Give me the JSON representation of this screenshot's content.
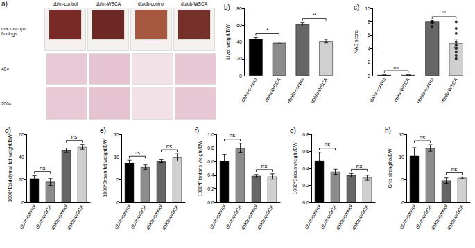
{
  "panel_a": {
    "label": "a)",
    "columns": [
      "db/m-control",
      "db/m-WSCA",
      "db/db-control",
      "db/db-WSCA"
    ],
    "rows": [
      "macroscopic findings",
      "40×",
      "200×"
    ]
  },
  "chart_data": [
    {
      "type": "bar",
      "panel": "b)",
      "y_label": "Liver weight/BW",
      "categories": [
        "db/m-control",
        "db/m-WSCA",
        "db/db-control",
        "db/db-WSCA"
      ],
      "values": [
        43,
        39,
        61,
        41
      ],
      "errors": [
        2,
        1,
        2,
        2
      ],
      "colors": [
        "#000000",
        "#8c8c8c",
        "#666666",
        "#d0d0d0"
      ],
      "ylim": [
        0,
        80
      ],
      "yticks": [
        0,
        20,
        40,
        60,
        80
      ],
      "grid": false,
      "annotations": [
        {
          "from": "db/m-control",
          "to": "db/m-WSCA",
          "text": "*"
        },
        {
          "from": "db/db-control",
          "to": "db/db-WSCA",
          "text": "**"
        }
      ]
    },
    {
      "type": "bar",
      "panel": "c)",
      "y_label": "NAS score",
      "categories": [
        "db/m-control",
        "db/m-WSCA",
        "db/db-control",
        "db/db-WSCA"
      ],
      "values": [
        0.1,
        0.1,
        8,
        4.8
      ],
      "errors": [
        0,
        0,
        0.15,
        0.6
      ],
      "points": [
        [],
        [],
        [
          8,
          8,
          8,
          8,
          7.3
        ],
        [
          8,
          7,
          6.3,
          5,
          4.5,
          4,
          3.5,
          3,
          2.5
        ]
      ],
      "colors": [
        "#000000",
        "#8c8c8c",
        "#666666",
        "#d0d0d0"
      ],
      "ylim": [
        0,
        10
      ],
      "yticks": [
        0,
        2,
        4,
        6,
        8,
        10
      ],
      "grid": false,
      "annotations": [
        {
          "from": "db/m-control",
          "to": "db/m-WSCA",
          "text": "ns"
        },
        {
          "from": "db/db-control",
          "to": "db/db-WSCA",
          "text": "**"
        }
      ]
    },
    {
      "type": "bar",
      "panel": "d)",
      "y_label": "1000*Epididymal fat weight/BW",
      "categories": [
        "db/m-control",
        "db/m-WSCA",
        "db/db-control",
        "db/db-WSCA"
      ],
      "values": [
        21,
        18,
        46,
        49
      ],
      "errors": [
        2.5,
        3,
        2,
        2
      ],
      "colors": [
        "#000000",
        "#8c8c8c",
        "#666666",
        "#d0d0d0"
      ],
      "ylim": [
        0,
        60
      ],
      "yticks": [
        0,
        20,
        40,
        60
      ],
      "grid": false,
      "annotations": [
        {
          "from": "db/m-control",
          "to": "db/m-WSCA",
          "text": "ns"
        },
        {
          "from": "db/db-control",
          "to": "db/db-WSCA",
          "text": "ns"
        }
      ]
    },
    {
      "type": "bar",
      "panel": "e)",
      "y_label": "1000*Brown fat weight/BW",
      "categories": [
        "db/m-control",
        "db/m-WSCA",
        "db/db-control",
        "db/db-WSCA"
      ],
      "values": [
        8.7,
        7.8,
        9.1,
        9.9
      ],
      "errors": [
        0.6,
        0.5,
        0.3,
        0.8
      ],
      "colors": [
        "#000000",
        "#8c8c8c",
        "#666666",
        "#d0d0d0"
      ],
      "ylim": [
        0,
        15
      ],
      "yticks": [
        0,
        5,
        10,
        15
      ],
      "grid": false,
      "annotations": [
        {
          "from": "db/m-control",
          "to": "db/m-WSCA",
          "text": "ns"
        },
        {
          "from": "db/db-control",
          "to": "db/db-WSCA",
          "text": "ns"
        }
      ]
    },
    {
      "type": "bar",
      "panel": "f)",
      "y_label": "1000*Plantaris weight/BW",
      "categories": [
        "db/m-control",
        "db/m-WSCA",
        "db/db-control",
        "db/db-WSCA"
      ],
      "values": [
        0.61,
        0.8,
        0.39,
        0.38
      ],
      "errors": [
        0.09,
        0.07,
        0.02,
        0.04
      ],
      "colors": [
        "#000000",
        "#8c8c8c",
        "#666666",
        "#d0d0d0"
      ],
      "ylim": [
        0,
        1
      ],
      "yticks": [
        {
          "value": 0,
          "label": "0.0"
        },
        0.2,
        0.4,
        0.6,
        0.8,
        {
          "value": 1,
          "label": "1.0"
        }
      ],
      "grid": false,
      "annotations": [
        {
          "from": "db/m-control",
          "to": "db/m-WSCA",
          "text": "ns"
        },
        {
          "from": "db/db-control",
          "to": "db/db-WSCA",
          "text": "ns"
        }
      ]
    },
    {
      "type": "bar",
      "panel": "g)",
      "y_label": "1000*Soleus weight/BW",
      "categories": [
        "db/m-control",
        "db/m-WSCA",
        "db/db-control",
        "db/db-WSCA"
      ],
      "values": [
        0.49,
        0.36,
        0.32,
        0.29
      ],
      "errors": [
        0.1,
        0.03,
        0.02,
        0.03
      ],
      "colors": [
        "#000000",
        "#8c8c8c",
        "#666666",
        "#d0d0d0"
      ],
      "ylim": [
        0,
        0.8
      ],
      "yticks": [
        {
          "value": 0,
          "label": "0.0"
        },
        0.2,
        0.4,
        0.6,
        0.8
      ],
      "grid": false,
      "annotations": [
        {
          "from": "db/m-control",
          "to": "db/m-WSCA",
          "text": "ns"
        },
        {
          "from": "db/db-control",
          "to": "db/db-WSCA",
          "text": "ns"
        }
      ]
    },
    {
      "type": "bar",
      "panel": "h)",
      "y_label": "Grip strengths/BW",
      "categories": [
        "db/m-control",
        "db/m-WSCA",
        "db/db-control",
        "db/db-WSCA"
      ],
      "values": [
        10.3,
        12,
        4.8,
        5.4
      ],
      "errors": [
        1.8,
        0.7,
        0.6,
        0.2
      ],
      "colors": [
        "#000000",
        "#8c8c8c",
        "#666666",
        "#d0d0d0"
      ],
      "ylim": [
        0,
        15
      ],
      "yticks": [
        0,
        5,
        10,
        15
      ],
      "grid": false,
      "annotations": [
        {
          "from": "db/m-control",
          "to": "db/m-WSCA",
          "text": "ns"
        },
        {
          "from": "db/db-control",
          "to": "db/db-WSCA",
          "text": "ns"
        }
      ]
    }
  ]
}
